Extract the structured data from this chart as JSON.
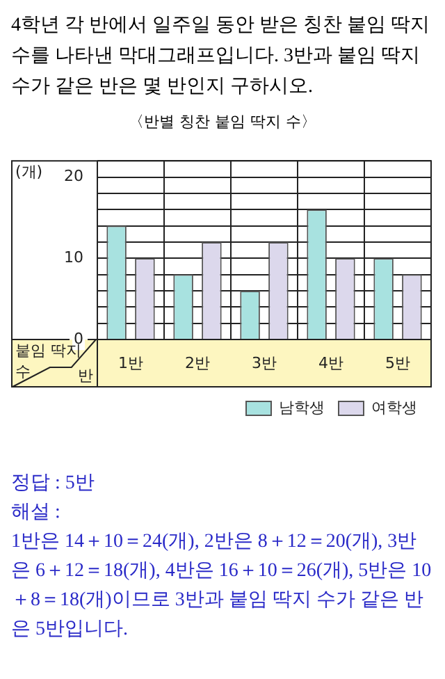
{
  "chart_data": {
    "type": "bar",
    "title": "〈반별 칭찬 붙임 딱지 수〉",
    "subtitle": "4학년 각 반에서 일주일 동안 받은 칭찬 붙임 딱지 수를 나타낸 막대그래프입니다. 3반과 붙임 딱지 수가 같은 반은 몇 반인지 구하시오.",
    "ylabel": "(개)",
    "xlabel": "반",
    "categories": [
      "1반",
      "2반",
      "3반",
      "4반",
      "5반"
    ],
    "series": [
      {
        "name": "남학생",
        "color": "#a8e2e0",
        "values": [
          14,
          8,
          6,
          16,
          10
        ]
      },
      {
        "name": "여학생",
        "color": "#dcd8ec",
        "values": [
          10,
          12,
          12,
          10,
          8
        ]
      }
    ],
    "ylim": [
      0,
      22
    ],
    "yticks": [
      0,
      {
        "value": 2,
        "label": null
      },
      {
        "value": 4,
        "label": null
      },
      {
        "value": 6,
        "label": null
      },
      {
        "value": 8,
        "label": null
      },
      10,
      {
        "value": 12,
        "label": null
      },
      {
        "value": 14,
        "label": null
      },
      {
        "value": 16,
        "label": null
      },
      {
        "value": 18,
        "label": null
      },
      20,
      {
        "value": 22,
        "label": null
      }
    ],
    "grid": true,
    "legend": "bottom right",
    "annotations": [
      "붙임 딱지 수",
      "정답 : 5반",
      "해설 :",
      "1반은 14＋10＝24(개), 2반은 8＋12＝20(개), 3반은 6＋12＝18(개), 4반은 16＋10＝26(개), 5반은 10＋8＝18(개)이므로 3반과 붙임 딱지 수가 같은 반은 5반입니다."
    ]
  }
}
